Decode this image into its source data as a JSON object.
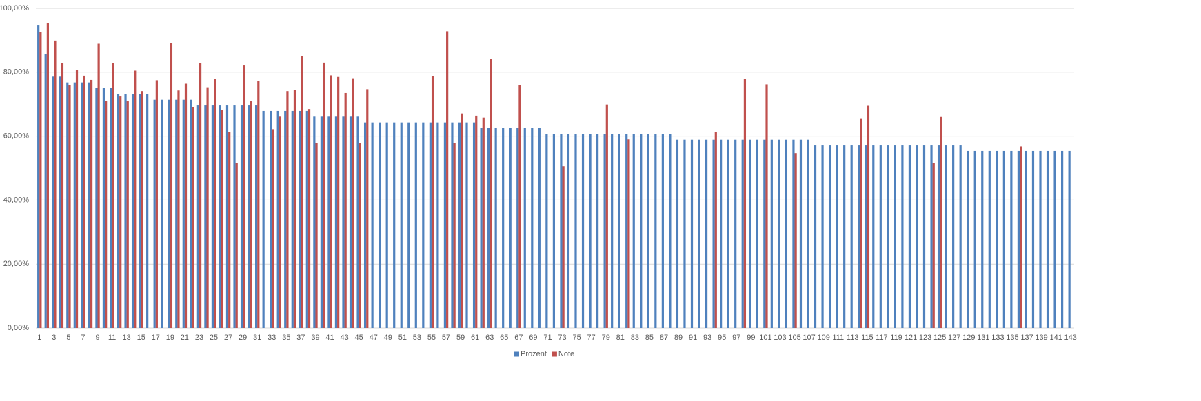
{
  "chart_data": {
    "type": "bar",
    "categories": [
      "1",
      null,
      "3",
      null,
      "5",
      null,
      "7",
      null,
      "9",
      null,
      "11",
      null,
      "13",
      null,
      "15",
      null,
      "17",
      null,
      "19",
      null,
      "21",
      null,
      "23",
      null,
      "25",
      null,
      "27",
      null,
      "29",
      null,
      "31",
      null,
      "33",
      null,
      "35",
      null,
      "37",
      null,
      "39",
      null,
      "41",
      null,
      "43",
      null,
      "45",
      null,
      "47",
      null,
      "49",
      null,
      "51",
      null,
      "53",
      null,
      "55",
      null,
      "57",
      null,
      "59",
      null,
      "61",
      null,
      "63",
      null,
      "65",
      null,
      "67",
      null,
      "69",
      null,
      "71",
      null,
      "73",
      null,
      "75",
      null,
      "77",
      null,
      "79",
      null,
      "81",
      null,
      "83",
      null,
      "85",
      null,
      "87",
      null,
      "89",
      null,
      "91",
      null,
      "93",
      null,
      "95",
      null,
      "97",
      null,
      "99",
      null,
      "101",
      null,
      "103",
      null,
      "105",
      null,
      "107",
      null,
      "109",
      null,
      "111",
      null,
      "113",
      null,
      "115",
      null,
      "117",
      null,
      "119",
      null,
      "121",
      null,
      "123",
      null,
      "125",
      null,
      "127",
      null,
      "129",
      null,
      "131",
      null,
      "133",
      null,
      "135",
      null,
      "137",
      null,
      "139",
      null,
      "141",
      null,
      "143"
    ],
    "series": [
      {
        "name": "Prozent",
        "color": "#4f81bd",
        "values": [
          94.6,
          85.7,
          78.6,
          78.6,
          76.8,
          76.8,
          76.8,
          76.8,
          75,
          75,
          75,
          73.2,
          73.2,
          73.2,
          73.2,
          73.2,
          71.4,
          71.4,
          71.4,
          71.4,
          71.4,
          71.4,
          69.6,
          69.6,
          69.6,
          69.6,
          69.6,
          69.6,
          69.6,
          69.6,
          69.6,
          67.9,
          67.9,
          67.9,
          67.9,
          67.9,
          67.9,
          67.9,
          66.1,
          66.1,
          66.1,
          66.1,
          66.1,
          66.1,
          66.1,
          64.3,
          64.3,
          64.3,
          64.3,
          64.3,
          64.3,
          64.3,
          64.3,
          64.3,
          64.3,
          64.3,
          64.3,
          64.3,
          64.3,
          64.3,
          64.3,
          62.5,
          62.5,
          62.5,
          62.5,
          62.5,
          62.5,
          62.5,
          62.5,
          62.5,
          60.7,
          60.7,
          60.7,
          60.7,
          60.7,
          60.7,
          60.7,
          60.7,
          60.7,
          60.7,
          60.7,
          60.7,
          60.7,
          60.7,
          60.7,
          60.7,
          60.7,
          60.7,
          58.9,
          58.9,
          58.9,
          58.9,
          58.9,
          58.9,
          58.9,
          58.9,
          58.9,
          58.9,
          58.9,
          58.9,
          58.9,
          58.9,
          58.9,
          58.9,
          58.9,
          58.9,
          58.9,
          57.1,
          57.1,
          57.1,
          57.1,
          57.1,
          57.1,
          57.1,
          57.1,
          57.1,
          57.1,
          57.1,
          57.1,
          57.1,
          57.1,
          57.1,
          57.1,
          57.1,
          57.1,
          57.1,
          57.1,
          57.1,
          55.4,
          55.4,
          55.4,
          55.4,
          55.4,
          55.4,
          55.4,
          55.4,
          55.4,
          55.4,
          55.4,
          55.4,
          55.4,
          55.4,
          55.4
        ]
      },
      {
        "name": "Note",
        "color": "#c0504d",
        "values": [
          92.6,
          95.3,
          89.9,
          82.8,
          76,
          80.6,
          78.9,
          77.6,
          88.9,
          71,
          82.8,
          72.4,
          70.9,
          80.5,
          74.1,
          null,
          77.5,
          null,
          89.2,
          74.3,
          76.4,
          69,
          82.8,
          75.3,
          77.8,
          68.2,
          61.3,
          51.6,
          82.1,
          70.9,
          77.2,
          null,
          62.2,
          66.1,
          74.1,
          74.5,
          85,
          68.5,
          57.8,
          83,
          79,
          78.5,
          73.5,
          78.1,
          57.8,
          74.7,
          null,
          null,
          null,
          null,
          null,
          null,
          null,
          null,
          78.8,
          null,
          92.8,
          57.8,
          67.1,
          null,
          66.4,
          65.8,
          84.2,
          null,
          null,
          null,
          76,
          null,
          null,
          null,
          null,
          null,
          50.6,
          null,
          null,
          null,
          null,
          null,
          69.9,
          null,
          null,
          59,
          null,
          null,
          null,
          null,
          null,
          null,
          null,
          null,
          null,
          null,
          null,
          61.3,
          null,
          null,
          null,
          78,
          null,
          null,
          76.2,
          null,
          null,
          null,
          54.7,
          null,
          null,
          null,
          null,
          null,
          null,
          null,
          null,
          65.6,
          69.5,
          null,
          null,
          null,
          null,
          null,
          null,
          null,
          null,
          51.7,
          66,
          null,
          null,
          null,
          null,
          null,
          null,
          null,
          null,
          null,
          null,
          56.8,
          null,
          null,
          null,
          null,
          null,
          null,
          null
        ]
      }
    ],
    "ylim": [
      0,
      100
    ],
    "yticks": [
      {
        "value": 0,
        "label": "0,00%"
      },
      {
        "value": 20,
        "label": "20,00%"
      },
      {
        "value": 40,
        "label": "40,00%"
      },
      {
        "value": 60,
        "label": "60,00%"
      },
      {
        "value": 80,
        "label": "80,00%"
      },
      {
        "value": 100,
        "label": "100,00%"
      }
    ],
    "grid": true,
    "legend": "bottom"
  }
}
